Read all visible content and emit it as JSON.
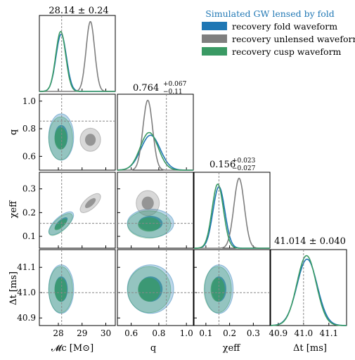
{
  "chart_data": {
    "type": "corner",
    "legend": {
      "title": "Simulated GW lensed by fold",
      "placement": "top-right",
      "entries": [
        {
          "name": "recovery fold waveform",
          "color": "#1f77b4"
        },
        {
          "name": "recovery unlensed waveform",
          "color": "#7f7f7f"
        },
        {
          "name": "recovery cusp waveform",
          "color": "#3a9a64"
        }
      ]
    },
    "parameters": [
      {
        "key": "Mc",
        "label": "𝓜c [M⊙]",
        "range": [
          27.2,
          30.4
        ],
        "ticks": [
          "28",
          "29",
          "30"
        ],
        "tick_values": [
          28,
          29,
          30
        ],
        "injected": 28.14,
        "title": {
          "main": "28.14 ± 0.24"
        }
      },
      {
        "key": "q",
        "label": "q",
        "range": [
          0.5,
          1.05
        ],
        "ticks": [
          "0.6",
          "0.8",
          "1.0"
        ],
        "tick_values": [
          0.6,
          0.8,
          1.0
        ],
        "injected": 0.855,
        "title": {
          "main": "0.764",
          "sup": "+0.067",
          "sub": "−0.11"
        }
      },
      {
        "key": "chi_eff",
        "label": "χeff",
        "range": [
          0.05,
          0.37
        ],
        "ticks": [
          "0.1",
          "0.2",
          "0.3"
        ],
        "tick_values": [
          0.1,
          0.2,
          0.3
        ],
        "injected": 0.155,
        "title": {
          "main": "0.156",
          "sup": "+0.023",
          "sub": "−0.027"
        }
      },
      {
        "key": "dt",
        "label": "Δt [ms]",
        "range": [
          40.87,
          41.17
        ],
        "ticks": [
          "40.9",
          "41.0",
          "41.1"
        ],
        "tick_values": [
          40.9,
          41.0,
          41.1
        ],
        "injected": 41.0,
        "title": {
          "main": "41.014 ± 0.040"
        }
      }
    ],
    "series": [
      {
        "name": "recovery fold waveform",
        "color": "#1f77b4",
        "mean": {
          "Mc": 28.12,
          "q": 0.74,
          "chi_eff": 0.155,
          "dt": 41.014
        },
        "sigma": {
          "Mc": 0.22,
          "q": 0.07,
          "chi_eff": 0.025,
          "dt": 0.04
        }
      },
      {
        "name": "recovery unlensed waveform",
        "color": "#7f7f7f",
        "mean": {
          "Mc": 29.35,
          "q": 0.72,
          "chi_eff": 0.24,
          "dt": null
        },
        "sigma": {
          "Mc": 0.18,
          "q": 0.035,
          "chi_eff": 0.022,
          "dt": null
        }
      },
      {
        "name": "recovery cusp waveform",
        "color": "#3a9a64",
        "mean": {
          "Mc": 28.1,
          "q": 0.73,
          "chi_eff": 0.15,
          "dt": 41.012
        },
        "sigma": {
          "Mc": 0.21,
          "q": 0.065,
          "chi_eff": 0.024,
          "dt": 0.038
        }
      }
    ]
  }
}
